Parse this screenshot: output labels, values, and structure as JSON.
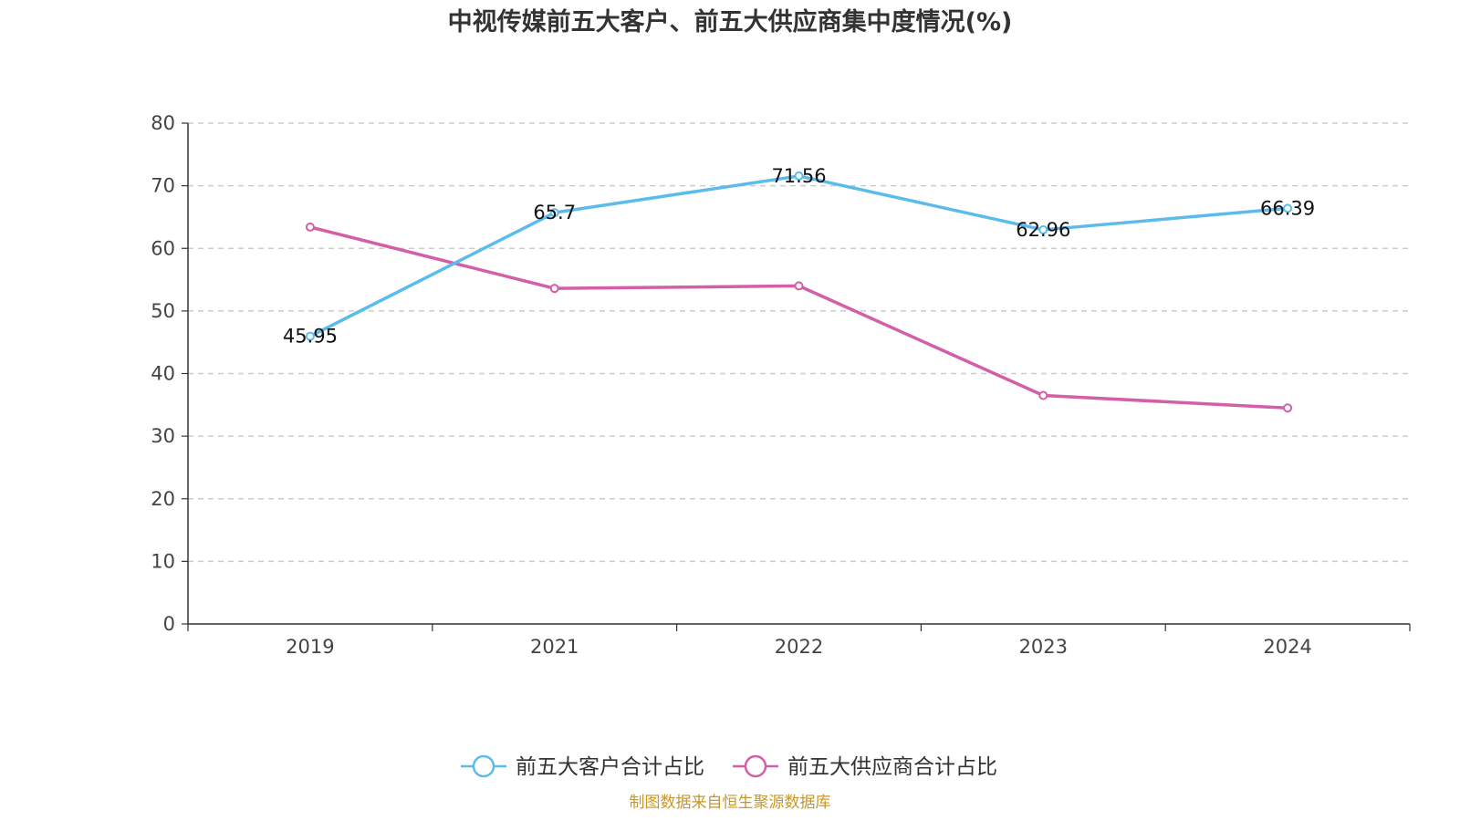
{
  "chart_data": {
    "type": "line",
    "title": "中视传媒前五大客户、前五大供应商集中度情况(%)",
    "categories": [
      "2019",
      "2021",
      "2022",
      "2023",
      "2024"
    ],
    "ylim": [
      0,
      80
    ],
    "yticks": [
      0,
      10,
      20,
      30,
      40,
      50,
      60,
      70,
      80
    ],
    "grid": true,
    "legend_position": "bottom",
    "series": [
      {
        "name": "前五大客户合计占比",
        "color": "#5bbcec",
        "values": [
          45.95,
          65.7,
          71.56,
          62.96,
          66.39
        ],
        "labels": [
          "45.95",
          "65.7",
          "71.56",
          "62.96",
          "66.39"
        ],
        "show_labels": true
      },
      {
        "name": "前五大供应商合计占比",
        "color": "#d35fa8",
        "values": [
          63.4,
          53.6,
          54.0,
          36.5,
          34.5
        ],
        "show_labels": false
      }
    ],
    "source": "制图数据来自恒生聚源数据库",
    "source_color": "#c8962a"
  }
}
